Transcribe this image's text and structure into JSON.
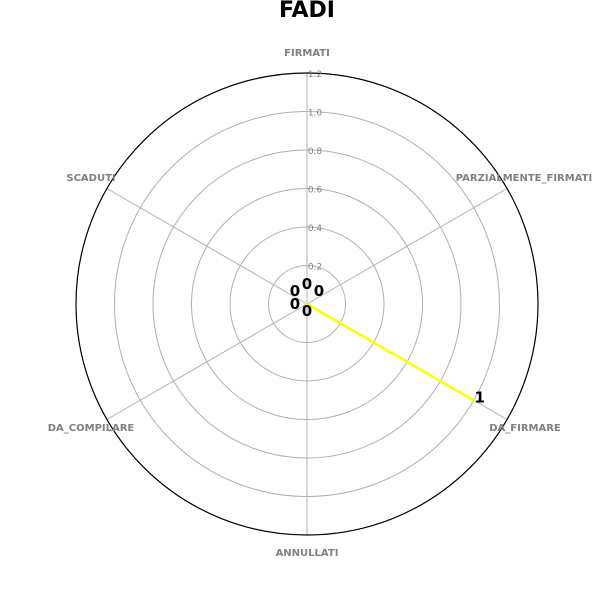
{
  "chart_data": {
    "type": "radar",
    "title": "FADI",
    "categories": [
      "FIRMATI",
      "PARZIALMENTE_FIRMATI",
      "DA_FIRMARE",
      "ANNULLATI",
      "DA_COMPILARE",
      "SCADUTI"
    ],
    "series": [
      {
        "values": [
          0,
          0,
          1,
          0,
          0,
          0
        ],
        "color": "#ffff00"
      }
    ],
    "data_labels": [
      "0",
      "0",
      "1",
      "0",
      "0",
      "0"
    ],
    "rlim": [
      0,
      1.2
    ],
    "r_ticks": [
      "0.2",
      "0.4",
      "0.6",
      "0.8",
      "1.0",
      "1.2"
    ],
    "grid": true
  }
}
